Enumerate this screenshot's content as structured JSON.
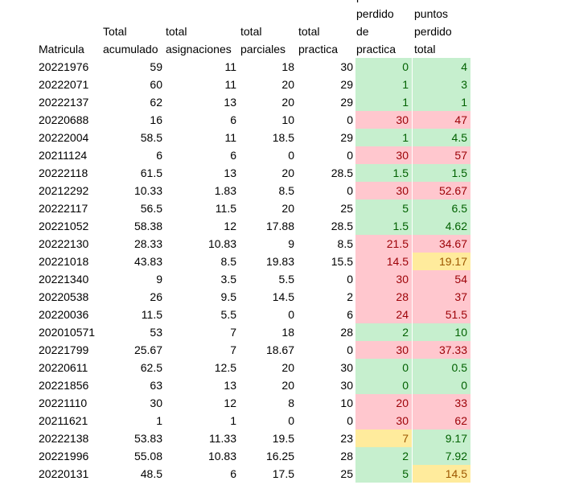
{
  "headers": {
    "matricula": [
      "Matricula"
    ],
    "total_acumulado": [
      "Total",
      "acumulado"
    ],
    "total_asignaciones": [
      "total",
      "asignaciones"
    ],
    "total_parciales": [
      "total",
      "parciales"
    ],
    "total_practica": [
      "total",
      "practica"
    ],
    "puntos_perdido_practica": [
      "puntos",
      "perdido",
      "de",
      "practica"
    ],
    "puntos_perdido_total": [
      "puntos",
      "perdido",
      "total"
    ]
  },
  "rows": [
    {
      "matricula": "20221976",
      "total_acumulado": "59",
      "total_asignaciones": "11",
      "total_parciales": "18",
      "total_practica": "30",
      "perdido_practica": "0",
      "perdido_practica_status": "green",
      "perdido_total": "4",
      "perdido_total_status": "green"
    },
    {
      "matricula": "20222071",
      "total_acumulado": "60",
      "total_asignaciones": "11",
      "total_parciales": "20",
      "total_practica": "29",
      "perdido_practica": "1",
      "perdido_practica_status": "green",
      "perdido_total": "3",
      "perdido_total_status": "green"
    },
    {
      "matricula": "20222137",
      "total_acumulado": "62",
      "total_asignaciones": "13",
      "total_parciales": "20",
      "total_practica": "29",
      "perdido_practica": "1",
      "perdido_practica_status": "green",
      "perdido_total": "1",
      "perdido_total_status": "green"
    },
    {
      "matricula": "20220688",
      "total_acumulado": "16",
      "total_asignaciones": "6",
      "total_parciales": "10",
      "total_practica": "0",
      "perdido_practica": "30",
      "perdido_practica_status": "red",
      "perdido_total": "47",
      "perdido_total_status": "red"
    },
    {
      "matricula": "20222004",
      "total_acumulado": "58.5",
      "total_asignaciones": "11",
      "total_parciales": "18.5",
      "total_practica": "29",
      "perdido_practica": "1",
      "perdido_practica_status": "green",
      "perdido_total": "4.5",
      "perdido_total_status": "green"
    },
    {
      "matricula": "20211124",
      "total_acumulado": "6",
      "total_asignaciones": "6",
      "total_parciales": "0",
      "total_practica": "0",
      "perdido_practica": "30",
      "perdido_practica_status": "red",
      "perdido_total": "57",
      "perdido_total_status": "red"
    },
    {
      "matricula": "20222118",
      "total_acumulado": "61.5",
      "total_asignaciones": "13",
      "total_parciales": "20",
      "total_practica": "28.5",
      "perdido_practica": "1.5",
      "perdido_practica_status": "green",
      "perdido_total": "1.5",
      "perdido_total_status": "green"
    },
    {
      "matricula": "20212292",
      "total_acumulado": "10.33",
      "total_asignaciones": "1.83",
      "total_parciales": "8.5",
      "total_practica": "0",
      "perdido_practica": "30",
      "perdido_practica_status": "red",
      "perdido_total": "52.67",
      "perdido_total_status": "red"
    },
    {
      "matricula": "20222117",
      "total_acumulado": "56.5",
      "total_asignaciones": "11.5",
      "total_parciales": "20",
      "total_practica": "25",
      "perdido_practica": "5",
      "perdido_practica_status": "green",
      "perdido_total": "6.5",
      "perdido_total_status": "green"
    },
    {
      "matricula": "20221052",
      "total_acumulado": "58.38",
      "total_asignaciones": "12",
      "total_parciales": "17.88",
      "total_practica": "28.5",
      "perdido_practica": "1.5",
      "perdido_practica_status": "green",
      "perdido_total": "4.62",
      "perdido_total_status": "green"
    },
    {
      "matricula": "20222130",
      "total_acumulado": "28.33",
      "total_asignaciones": "10.83",
      "total_parciales": "9",
      "total_practica": "8.5",
      "perdido_practica": "21.5",
      "perdido_practica_status": "red",
      "perdido_total": "34.67",
      "perdido_total_status": "red"
    },
    {
      "matricula": "20221018",
      "total_acumulado": "43.83",
      "total_asignaciones": "8.5",
      "total_parciales": "19.83",
      "total_practica": "15.5",
      "perdido_practica": "14.5",
      "perdido_practica_status": "red",
      "perdido_total": "19.17",
      "perdido_total_status": "yellow"
    },
    {
      "matricula": "20221340",
      "total_acumulado": "9",
      "total_asignaciones": "3.5",
      "total_parciales": "5.5",
      "total_practica": "0",
      "perdido_practica": "30",
      "perdido_practica_status": "red",
      "perdido_total": "54",
      "perdido_total_status": "red"
    },
    {
      "matricula": "20220538",
      "total_acumulado": "26",
      "total_asignaciones": "9.5",
      "total_parciales": "14.5",
      "total_practica": "2",
      "perdido_practica": "28",
      "perdido_practica_status": "red",
      "perdido_total": "37",
      "perdido_total_status": "red"
    },
    {
      "matricula": "20220036",
      "total_acumulado": "11.5",
      "total_asignaciones": "5.5",
      "total_parciales": "0",
      "total_practica": "6",
      "perdido_practica": "24",
      "perdido_practica_status": "red",
      "perdido_total": "51.5",
      "perdido_total_status": "red"
    },
    {
      "matricula": "202010571",
      "total_acumulado": "53",
      "total_asignaciones": "7",
      "total_parciales": "18",
      "total_practica": "28",
      "perdido_practica": "2",
      "perdido_practica_status": "green",
      "perdido_total": "10",
      "perdido_total_status": "green"
    },
    {
      "matricula": "20221799",
      "total_acumulado": "25.67",
      "total_asignaciones": "7",
      "total_parciales": "18.67",
      "total_practica": "0",
      "perdido_practica": "30",
      "perdido_practica_status": "red",
      "perdido_total": "37.33",
      "perdido_total_status": "red"
    },
    {
      "matricula": "20220611",
      "total_acumulado": "62.5",
      "total_asignaciones": "12.5",
      "total_parciales": "20",
      "total_practica": "30",
      "perdido_practica": "0",
      "perdido_practica_status": "green",
      "perdido_total": "0.5",
      "perdido_total_status": "green"
    },
    {
      "matricula": "20221856",
      "total_acumulado": "63",
      "total_asignaciones": "13",
      "total_parciales": "20",
      "total_practica": "30",
      "perdido_practica": "0",
      "perdido_practica_status": "green",
      "perdido_total": "0",
      "perdido_total_status": "green"
    },
    {
      "matricula": "20221110",
      "total_acumulado": "30",
      "total_asignaciones": "12",
      "total_parciales": "8",
      "total_practica": "10",
      "perdido_practica": "20",
      "perdido_practica_status": "red",
      "perdido_total": "33",
      "perdido_total_status": "red"
    },
    {
      "matricula": "20211621",
      "total_acumulado": "1",
      "total_asignaciones": "1",
      "total_parciales": "0",
      "total_practica": "0",
      "perdido_practica": "30",
      "perdido_practica_status": "red",
      "perdido_total": "62",
      "perdido_total_status": "red"
    },
    {
      "matricula": "20222138",
      "total_acumulado": "53.83",
      "total_asignaciones": "11.33",
      "total_parciales": "19.5",
      "total_practica": "23",
      "perdido_practica": "7",
      "perdido_practica_status": "yellow",
      "perdido_total": "9.17",
      "perdido_total_status": "green"
    },
    {
      "matricula": "20221996",
      "total_acumulado": "55.08",
      "total_asignaciones": "10.83",
      "total_parciales": "16.25",
      "total_practica": "28",
      "perdido_practica": "2",
      "perdido_practica_status": "green",
      "perdido_total": "7.92",
      "perdido_total_status": "green"
    },
    {
      "matricula": "20220131",
      "total_acumulado": "48.5",
      "total_asignaciones": "6",
      "total_parciales": "17.5",
      "total_practica": "25",
      "perdido_practica": "5",
      "perdido_practica_status": "green",
      "perdido_total": "14.5",
      "perdido_total_status": "yellow"
    }
  ]
}
